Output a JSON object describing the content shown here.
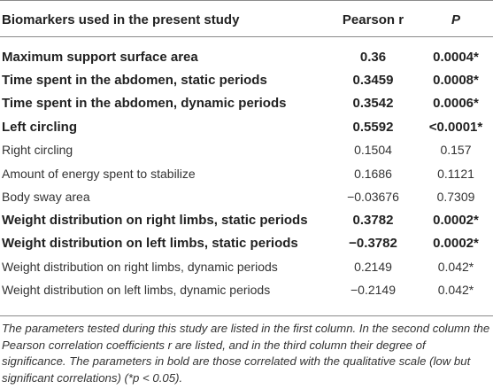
{
  "table": {
    "headers": {
      "parameter": "Biomarkers used in the present study",
      "pearson": "Pearson r",
      "p": "P"
    },
    "rows": [
      {
        "name": "Maximum support surface area",
        "r": "0.36",
        "p": "0.0004*",
        "bold": true
      },
      {
        "name": "Time spent in the abdomen, static periods",
        "r": "0.3459",
        "p": "0.0008*",
        "bold": true
      },
      {
        "name": "Time spent in the abdomen, dynamic periods",
        "r": "0.3542",
        "p": "0.0006*",
        "bold": true
      },
      {
        "name": "Left circling",
        "r": "0.5592",
        "p": "<0.0001*",
        "bold": true
      },
      {
        "name": "Right circling",
        "r": "0.1504",
        "p": "0.157",
        "bold": false
      },
      {
        "name": "Amount of energy spent to stabilize",
        "r": "0.1686",
        "p": "0.1121",
        "bold": false
      },
      {
        "name": "Body sway area",
        "r": "−0.03676",
        "p": "0.7309",
        "bold": false
      },
      {
        "name": "Weight distribution on right limbs, static periods",
        "r": "0.3782",
        "p": "0.0002*",
        "bold": true
      },
      {
        "name": "Weight distribution on left limbs, static periods",
        "r": "−0.3782",
        "p": "0.0002*",
        "bold": true
      },
      {
        "name": "Weight distribution on right limbs, dynamic periods",
        "r": "0.2149",
        "p": "0.042*",
        "bold": false
      },
      {
        "name": "Weight distribution on left limbs, dynamic periods",
        "r": "−0.2149",
        "p": "0.042*",
        "bold": false
      }
    ]
  },
  "footnote": "The parameters tested during this study are listed in the first column. In the second column the Pearson correlation coefficients r are listed, and in the third column their degree of significance. The parameters in bold are those correlated with the qualitative scale (low but significant correlations) (*p < 0.05)."
}
